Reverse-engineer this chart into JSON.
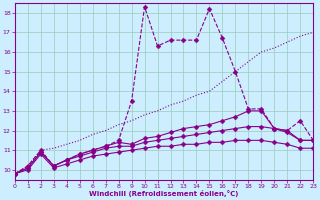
{
  "xlabel": "Windchill (Refroidissement éolien,°C)",
  "bg_color": "#cceeff",
  "grid_color": "#99ccbb",
  "line_color": "#880088",
  "xmin": 0,
  "xmax": 23,
  "ymin": 9.5,
  "ymax": 18.5,
  "yticks": [
    10,
    11,
    12,
    13,
    14,
    15,
    16,
    17,
    18
  ],
  "xticks": [
    0,
    1,
    2,
    3,
    4,
    5,
    6,
    7,
    8,
    9,
    10,
    11,
    12,
    13,
    14,
    15,
    16,
    17,
    18,
    19,
    20,
    21,
    22,
    23
  ],
  "series": [
    {
      "x": [
        0,
        1,
        2,
        3,
        4,
        5,
        6,
        7,
        8,
        9,
        10,
        11,
        12,
        13,
        14,
        15,
        16,
        17,
        18,
        19,
        20,
        21,
        22,
        23
      ],
      "y": [
        9.8,
        10.2,
        11.0,
        11.1,
        11.3,
        11.5,
        11.8,
        12.0,
        12.3,
        12.5,
        12.8,
        13.0,
        13.3,
        13.5,
        13.8,
        14.0,
        14.5,
        15.0,
        15.5,
        16.0,
        16.2,
        16.5,
        16.8,
        17.0
      ],
      "marker": null,
      "markersize": 0,
      "linestyle": ":"
    },
    {
      "x": [
        0,
        1,
        2,
        3,
        4,
        5,
        6,
        7,
        8,
        9,
        10,
        11,
        12,
        13,
        14,
        15,
        16,
        17,
        18,
        19,
        20,
        21,
        22,
        23
      ],
      "y": [
        9.8,
        10.2,
        11.0,
        10.2,
        10.5,
        10.8,
        11.0,
        11.2,
        11.5,
        13.5,
        18.3,
        16.3,
        16.6,
        16.6,
        16.6,
        18.2,
        16.7,
        15.0,
        13.1,
        13.1,
        12.1,
        12.0,
        12.5,
        11.5
      ],
      "marker": "D",
      "markersize": 2.5,
      "linestyle": "--"
    },
    {
      "x": [
        0,
        1,
        2,
        3,
        4,
        5,
        6,
        7,
        8,
        9,
        10,
        11,
        12,
        13,
        14,
        15,
        16,
        17,
        18,
        19,
        20,
        21,
        22,
        23
      ],
      "y": [
        9.8,
        10.1,
        10.9,
        10.2,
        10.5,
        10.8,
        11.0,
        11.2,
        11.4,
        11.3,
        11.6,
        11.7,
        11.9,
        12.1,
        12.2,
        12.3,
        12.5,
        12.7,
        13.0,
        13.0,
        12.1,
        12.0,
        11.5,
        11.5
      ],
      "marker": "D",
      "markersize": 2.5,
      "linestyle": "-"
    },
    {
      "x": [
        0,
        1,
        2,
        3,
        4,
        5,
        6,
        7,
        8,
        9,
        10,
        11,
        12,
        13,
        14,
        15,
        16,
        17,
        18,
        19,
        20,
        21,
        22,
        23
      ],
      "y": [
        9.8,
        10.1,
        10.9,
        10.2,
        10.5,
        10.7,
        10.9,
        11.1,
        11.2,
        11.2,
        11.4,
        11.5,
        11.6,
        11.7,
        11.8,
        11.9,
        12.0,
        12.1,
        12.2,
        12.2,
        12.1,
        11.9,
        11.5,
        11.5
      ],
      "marker": "D",
      "markersize": 2.5,
      "linestyle": "-"
    },
    {
      "x": [
        0,
        1,
        2,
        3,
        4,
        5,
        6,
        7,
        8,
        9,
        10,
        11,
        12,
        13,
        14,
        15,
        16,
        17,
        18,
        19,
        20,
        21,
        22,
        23
      ],
      "y": [
        9.8,
        10.0,
        10.8,
        10.1,
        10.3,
        10.5,
        10.7,
        10.8,
        10.9,
        11.0,
        11.1,
        11.2,
        11.2,
        11.3,
        11.3,
        11.4,
        11.4,
        11.5,
        11.5,
        11.5,
        11.4,
        11.3,
        11.1,
        11.1
      ],
      "marker": "D",
      "markersize": 2.5,
      "linestyle": "-"
    }
  ]
}
